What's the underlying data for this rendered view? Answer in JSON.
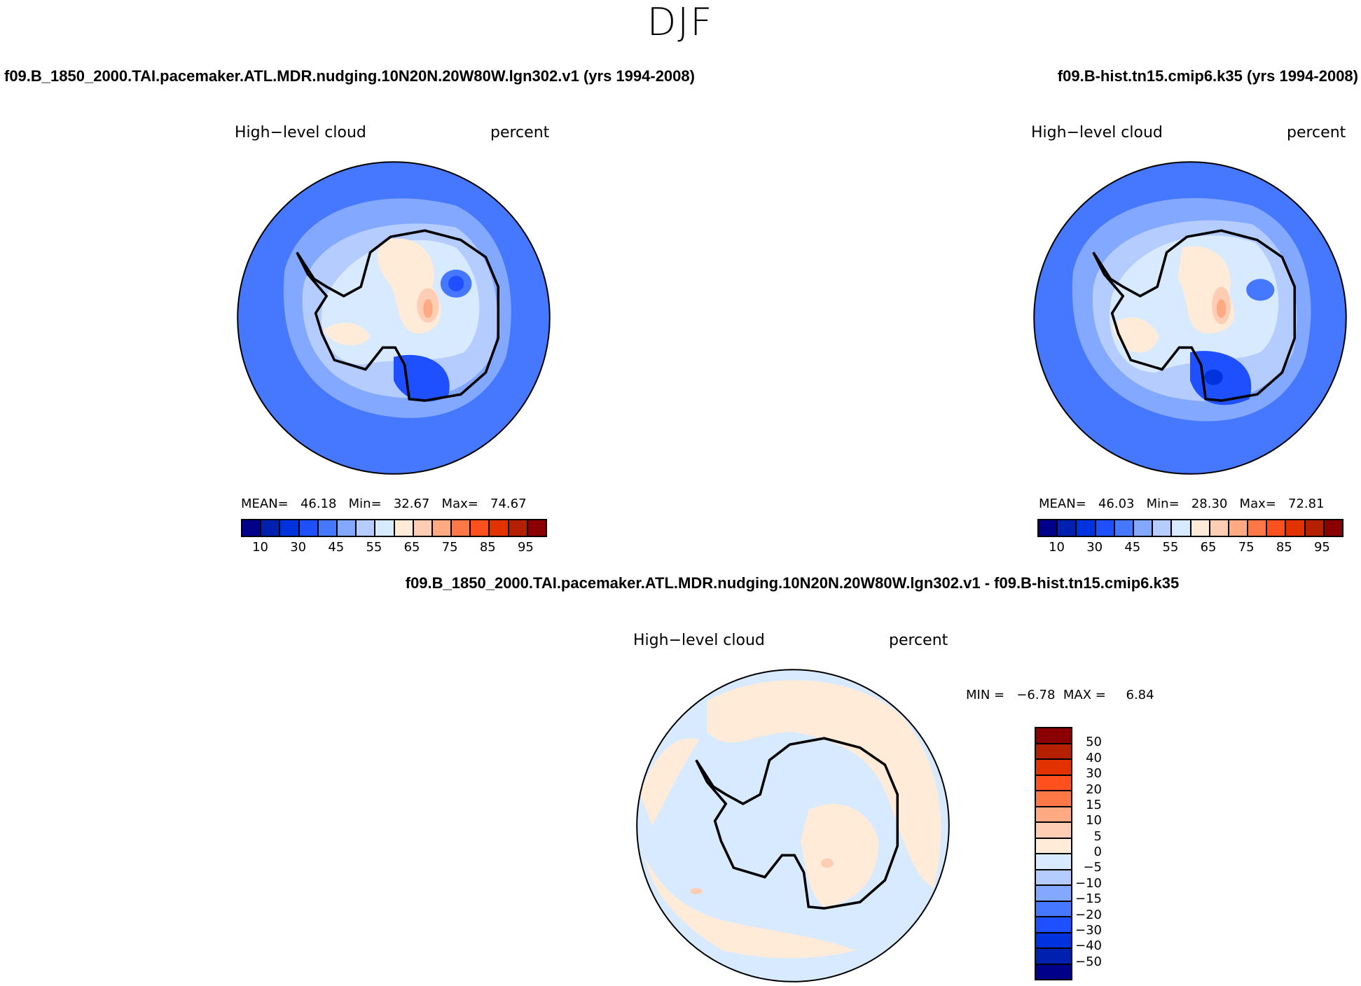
{
  "chart_data": [
    {
      "type": "heatmap",
      "projection": "south-polar-stereographic",
      "season": "DJF",
      "title": "f09.B_1850_2000.TAI.pacemaker.ATL.MDR.nudging.10N20N.20W80W.lgn302.v1 (yrs 1994-2008)",
      "variable": "High−level cloud",
      "units": "percent",
      "stats": {
        "mean_label": "MEAN=",
        "mean": "46.18",
        "min_label": "Min=",
        "min": "32.67",
        "max_label": "Max=",
        "max": "74.67"
      },
      "colorbar_ticks": [
        "10",
        "30",
        "45",
        "55",
        "65",
        "75",
        "85",
        "95"
      ]
    },
    {
      "type": "heatmap",
      "projection": "south-polar-stereographic",
      "season": "DJF",
      "title": "f09.B-hist.tn15.cmip6.k35 (yrs 1994-2008)",
      "variable": "High−level cloud",
      "units": "percent",
      "stats": {
        "mean_label": "MEAN=",
        "mean": "46.03",
        "min_label": "Min=",
        "min": "28.30",
        "max_label": "Max=",
        "max": "72.81"
      },
      "colorbar_ticks": [
        "10",
        "30",
        "45",
        "55",
        "65",
        "75",
        "85",
        "95"
      ]
    },
    {
      "type": "heatmap",
      "projection": "south-polar-stereographic",
      "season": "DJF",
      "title": "f09.B_1850_2000.TAI.pacemaker.ATL.MDR.nudging.10N20N.20W80W.lgn302.v1 - f09.B-hist.tn15.cmip6.k35",
      "variable": "High−level cloud",
      "units": "percent",
      "stats": {
        "min_label": "MIN =",
        "min": "−6.78",
        "max_label": "MAX =",
        "max": "6.84"
      },
      "colorbar_ticks": [
        "50",
        "40",
        "30",
        "20",
        "15",
        "10",
        "5",
        "0",
        "−5",
        "−10",
        "−15",
        "−20",
        "−30",
        "−40",
        "−50"
      ]
    }
  ],
  "main_title": "DJF",
  "colors": [
    "#00008b",
    "#0020b0",
    "#0033dd",
    "#1e50ff",
    "#4678ff",
    "#82a8ff",
    "#b4ccff",
    "#d7eaff",
    "#ffebd8",
    "#ffccb4",
    "#ffaa82",
    "#ff7846",
    "#ff501e",
    "#e13200",
    "#b42000",
    "#8b0000"
  ]
}
